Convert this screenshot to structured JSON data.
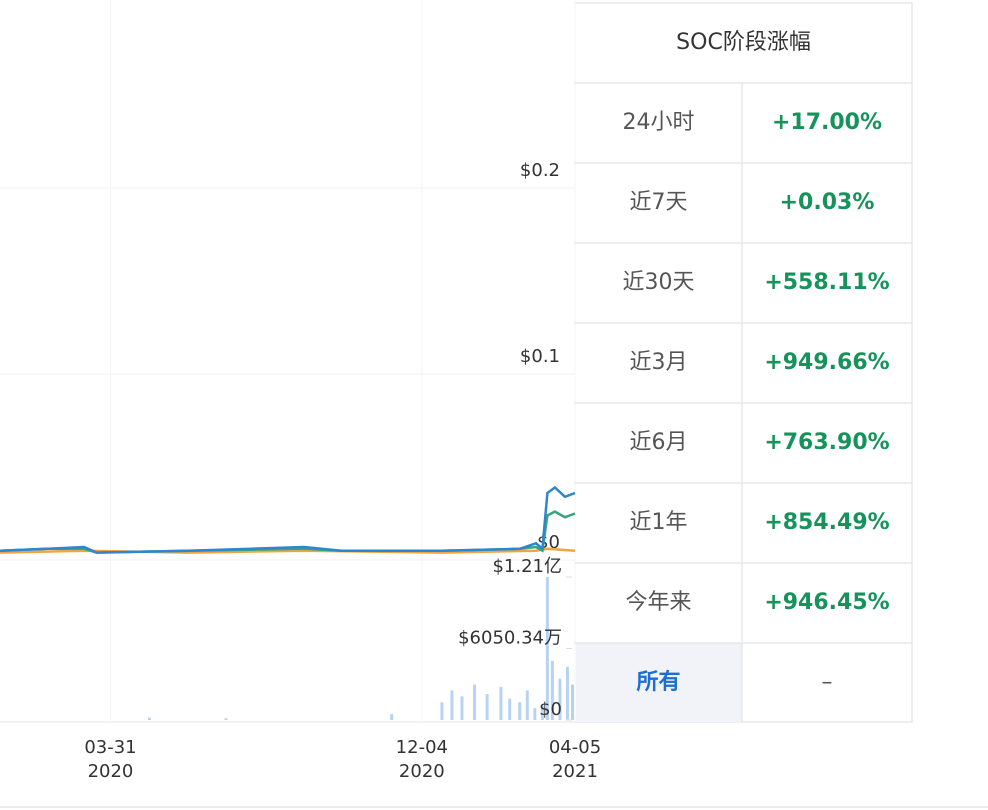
{
  "chart": {
    "type": "line",
    "xlim": [
      "2020-01-03",
      "2021-04-05"
    ],
    "xticks": [
      {
        "value": "2020-03-31",
        "label": "03-31",
        "sublabel": "2020"
      },
      {
        "value": "2020-12-04",
        "label": "12-04",
        "sublabel": "2020"
      },
      {
        "value": "2021-04-05",
        "label": "04-05",
        "sublabel": "2021"
      }
    ],
    "ylim": [
      0,
      0.3
    ],
    "yticks": [
      {
        "value": 0.2,
        "label": "$0.2"
      },
      {
        "value": 0.1,
        "label": "$0.1"
      },
      {
        "value": 0,
        "label": "$0"
      }
    ],
    "grid": true,
    "series": [
      {
        "color": "#f0a640",
        "x": [
          "2020-01-03",
          "2020-03-10",
          "2020-06-01",
          "2020-09-01",
          "2020-12-20",
          "2021-03-05",
          "2021-03-14",
          "2021-04-05"
        ],
        "values": [
          0.004,
          0.005,
          0.004,
          0.005,
          0.004,
          0.005,
          0.006,
          0.005
        ]
      },
      {
        "color": "#3aa57a",
        "x": [
          "2020-01-03",
          "2020-02-10",
          "2020-03-10",
          "2020-03-20",
          "2020-06-01",
          "2020-09-01",
          "2020-10-01",
          "2020-12-20",
          "2021-02-20",
          "2021-03-05",
          "2021-03-10",
          "2021-03-14",
          "2021-03-20",
          "2021-03-28",
          "2021-04-05"
        ],
        "values": [
          0.005,
          0.006,
          0.006,
          0.004,
          0.005,
          0.006,
          0.005,
          0.005,
          0.006,
          0.007,
          0.005,
          0.024,
          0.026,
          0.023,
          0.025
        ]
      },
      {
        "color": "#2e86d0",
        "x": [
          "2020-01-03",
          "2020-02-10",
          "2020-03-10",
          "2020-03-20",
          "2020-06-01",
          "2020-09-01",
          "2020-10-01",
          "2020-12-20",
          "2021-02-20",
          "2021-03-05",
          "2021-03-10",
          "2021-03-14",
          "2021-03-20",
          "2021-03-28",
          "2021-04-05"
        ],
        "values": [
          0.005,
          0.006,
          0.007,
          0.004,
          0.005,
          0.007,
          0.005,
          0.005,
          0.006,
          0.009,
          0.006,
          0.036,
          0.039,
          0.034,
          0.036
        ]
      }
    ],
    "volume": {
      "color": "#b8d3f2",
      "ylim": [
        0,
        121000000
      ],
      "yticks": [
        {
          "value": 121000000,
          "label": "$1.21亿"
        },
        {
          "value": 60503400,
          "label": "$6050.34万"
        },
        {
          "value": 0,
          "label": "$0"
        }
      ],
      "x": [
        "2020-05-01",
        "2020-07-01",
        "2020-11-10",
        "2020-12-20",
        "2020-12-28",
        "2021-01-05",
        "2021-01-15",
        "2021-01-25",
        "2021-02-05",
        "2021-02-12",
        "2021-02-20",
        "2021-02-26",
        "2021-03-04",
        "2021-03-10",
        "2021-03-14",
        "2021-03-18",
        "2021-03-24",
        "2021-03-30",
        "2021-04-03"
      ],
      "values": [
        2000000,
        1500000,
        5000000,
        15000000,
        25000000,
        20000000,
        30000000,
        22000000,
        28000000,
        18000000,
        15000000,
        25000000,
        10000000,
        12000000,
        121000000,
        50000000,
        35000000,
        45000000,
        30000000
      ]
    }
  },
  "table": {
    "title": "SOC阶段涨幅",
    "rows": [
      [
        "24小时",
        "+17.00%"
      ],
      [
        "近7天",
        "+0.03%"
      ],
      [
        "近30天",
        "+558.11%"
      ],
      [
        "近3月",
        "+949.66%"
      ],
      [
        "近6月",
        "+763.90%"
      ],
      [
        "近1年",
        "+854.49%"
      ],
      [
        "今年来",
        "+946.45%"
      ],
      [
        "所有",
        "–"
      ]
    ]
  }
}
